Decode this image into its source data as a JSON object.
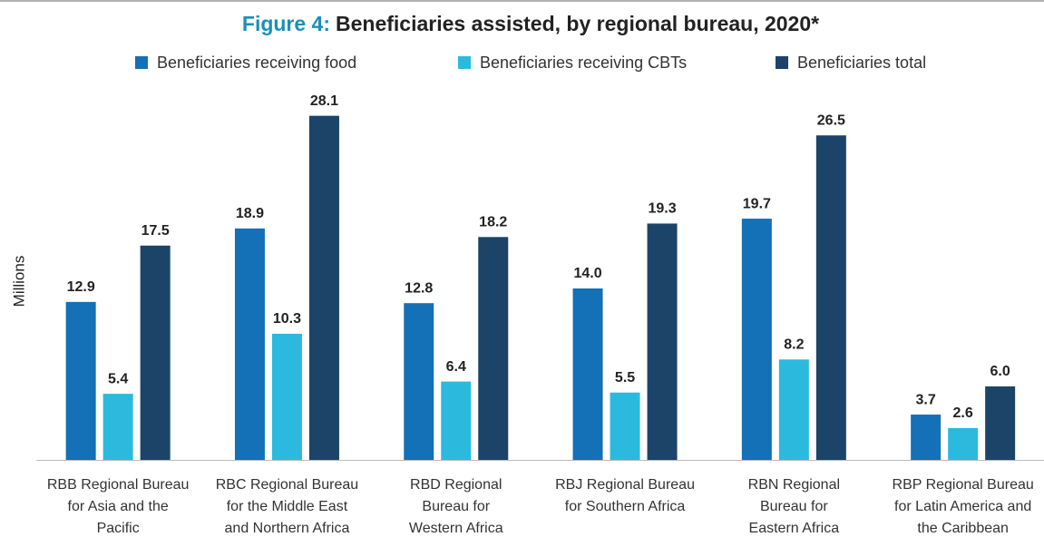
{
  "chart_data": {
    "type": "bar",
    "title_label": "Figure 4:",
    "title": "Beneficiaries assisted, by regional bureau, 2020*",
    "ylabel": "Millions",
    "categories": [
      [
        "RBB Regional Bureau",
        "for Asia and the",
        "Pacific"
      ],
      [
        "RBC Regional Bureau",
        "for the Middle East",
        "and Northern Africa"
      ],
      [
        "RBD Regional",
        "Bureau for",
        "Western Africa"
      ],
      [
        "RBJ Regional Bureau",
        "for Southern Africa"
      ],
      [
        "RBN Regional",
        "Bureau for",
        "Eastern Africa"
      ],
      [
        "RBP Regional Bureau",
        "for Latin America and",
        "the Caribbean"
      ]
    ],
    "series": [
      {
        "name": "Beneficiaries receiving food",
        "color": "#1470b7",
        "values": [
          12.9,
          18.9,
          12.8,
          14.0,
          19.7,
          3.7
        ],
        "value_labels": [
          "12.9",
          "18.9",
          "12.8",
          "14.0",
          "19.7",
          "3.7"
        ]
      },
      {
        "name": "Beneficiaries receiving CBTs",
        "color": "#2bbade",
        "values": [
          5.4,
          10.3,
          6.4,
          5.5,
          8.2,
          2.6
        ],
        "value_labels": [
          "5.4",
          "10.3",
          "6.4",
          "5.5",
          "8.2",
          "2.6"
        ]
      },
      {
        "name": "Beneficiaries total",
        "color": "#1b4468",
        "values": [
          17.5,
          28.1,
          18.2,
          19.3,
          26.5,
          6.0
        ],
        "value_labels": [
          "17.5",
          "28.1",
          "18.2",
          "19.3",
          "26.5",
          "6.0"
        ]
      }
    ],
    "ylim": [
      0,
      30
    ],
    "legend": "top"
  }
}
